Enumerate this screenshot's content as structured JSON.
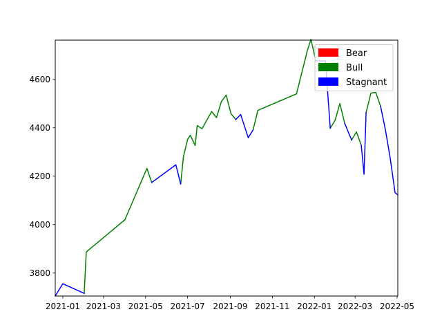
{
  "chart_data": {
    "type": "line",
    "title": "",
    "xlabel": "",
    "ylabel": "",
    "xlim": [
      "2020-12-21",
      "2022-05-02"
    ],
    "ylim": [
      3705,
      4762
    ],
    "x_ticks": [
      "2021-01-01",
      "2021-03-01",
      "2021-05-01",
      "2021-07-01",
      "2021-09-01",
      "2021-11-01",
      "2022-01-01",
      "2022-03-01",
      "2022-05-01"
    ],
    "x_tick_labels": [
      "2021-01",
      "2021-03",
      "2021-05",
      "2021-07",
      "2021-09",
      "2021-11",
      "2022-01",
      "2022-03",
      "2022-05"
    ],
    "y_ticks": [
      3800,
      4000,
      4200,
      4400,
      4600
    ],
    "y_tick_labels": [
      "3800",
      "4000",
      "4200",
      "4400",
      "4600"
    ],
    "grid": false,
    "legend_position": "top-right",
    "legend": [
      {
        "name": "Bear",
        "color": "#ff0000"
      },
      {
        "name": "Bull",
        "color": "#008000"
      },
      {
        "name": "Stagnant",
        "color": "#0000ff"
      }
    ],
    "series": [
      {
        "name": "Bear",
        "color": "#ff0000",
        "segments": []
      },
      {
        "name": "Bull",
        "color": "#008000",
        "segments": [
          [
            [
              "2021-02-01",
              3716
            ],
            [
              "2021-02-04",
              3887
            ],
            [
              "2021-04-01",
              4020
            ],
            [
              "2021-05-03",
              4232
            ],
            [
              "2021-05-10",
              4174
            ]
          ],
          [
            [
              "2021-06-21",
              4168
            ],
            [
              "2021-06-25",
              4281
            ],
            [
              "2021-07-01",
              4352
            ],
            [
              "2021-07-05",
              4369
            ],
            [
              "2021-07-12",
              4327
            ],
            [
              "2021-07-15",
              4409
            ],
            [
              "2021-07-22",
              4396
            ],
            [
              "2021-07-29",
              4432
            ],
            [
              "2021-08-05",
              4467
            ],
            [
              "2021-08-12",
              4442
            ],
            [
              "2021-08-19",
              4508
            ],
            [
              "2021-08-26",
              4535
            ],
            [
              "2021-09-02",
              4458
            ],
            [
              "2021-09-09",
              4434
            ]
          ],
          [
            [
              "2021-09-27",
              4359
            ]
          ],
          [
            [
              "2021-10-04",
              4391
            ],
            [
              "2021-10-11",
              4472
            ],
            [
              "2021-12-06",
              4540
            ],
            [
              "2021-12-22",
              4721
            ],
            [
              "2021-12-27",
              4765
            ],
            [
              "2022-01-03",
              4677
            ]
          ],
          [
            [
              "2022-01-24",
              4398
            ],
            [
              "2022-01-31",
              4431
            ],
            [
              "2022-02-07",
              4500
            ],
            [
              "2022-02-14",
              4418
            ]
          ],
          [
            [
              "2022-02-24",
              4349
            ],
            [
              "2022-03-03",
              4383
            ],
            [
              "2022-03-10",
              4327
            ]
          ],
          [
            [
              "2022-03-17",
              4463
            ],
            [
              "2022-03-24",
              4543
            ],
            [
              "2022-03-31",
              4546
            ],
            [
              "2022-04-07",
              4489
            ]
          ]
        ]
      },
      {
        "name": "Stagnant",
        "color": "#0000ff",
        "segments": [
          [
            [
              "2020-12-21",
              3705
            ],
            [
              "2021-01-01",
              3756
            ],
            [
              "2021-02-01",
              3716
            ]
          ],
          [
            [
              "2021-05-10",
              4174
            ],
            [
              "2021-06-14",
              4247
            ],
            [
              "2021-06-21",
              4168
            ]
          ],
          [
            [
              "2021-09-09",
              4434
            ],
            [
              "2021-09-16",
              4455
            ],
            [
              "2021-09-27",
              4359
            ],
            [
              "2021-10-04",
              4391
            ]
          ],
          [
            [
              "2022-01-03",
              4677
            ],
            [
              "2022-01-17",
              4676
            ],
            [
              "2022-01-24",
              4398
            ]
          ],
          [
            [
              "2022-02-14",
              4418
            ],
            [
              "2022-02-24",
              4349
            ]
          ],
          [
            [
              "2022-03-10",
              4327
            ],
            [
              "2022-03-14",
              4208
            ],
            [
              "2022-03-17",
              4463
            ]
          ],
          [
            [
              "2022-04-07",
              4489
            ],
            [
              "2022-04-14",
              4392
            ],
            [
              "2022-04-21",
              4275
            ],
            [
              "2022-04-28",
              4132
            ],
            [
              "2022-05-02",
              4123
            ]
          ]
        ]
      }
    ]
  }
}
